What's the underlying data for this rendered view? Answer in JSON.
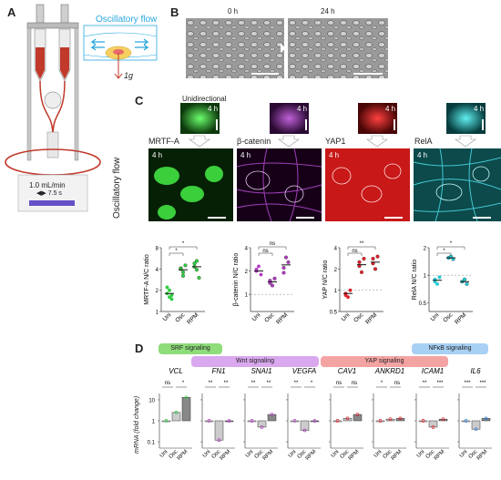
{
  "panels": {
    "A": "A",
    "B": "B",
    "C": "C",
    "D": "D"
  },
  "panelA": {
    "flow_title": "Oscillatory flow",
    "gravity": "1g",
    "flow_rate": "1.0 mL/min",
    "period": "7.5 s",
    "colors": {
      "flow": "#29a8e0",
      "cell": "#f5d060",
      "fluid": "#c0392b"
    }
  },
  "panelB": {
    "time_labels": [
      "0 h",
      "24 h"
    ]
  },
  "panelC": {
    "unidirectional_label": "Unidirectional",
    "oscillatory_label": "Oscillatory flow",
    "time_label": "4 h",
    "markers": [
      {
        "name": "MRTF-A",
        "color": "#2ecc40"
      },
      {
        "name": "β-catenin",
        "color": "#b03ac0"
      },
      {
        "name": "YAP1",
        "color": "#e0202a"
      },
      {
        "name": "RelA",
        "color": "#20c8d0"
      }
    ],
    "chart_ylabels": [
      "MRTF-A N/C ratio",
      "β-catenin N/C ratio",
      "YAP N/C ratio",
      "RelA N/C ratio"
    ],
    "groups": [
      "Uni",
      "Osc",
      "RPM"
    ],
    "sig_marks": [
      "*",
      "*",
      "ns",
      "ns",
      "**",
      "ns",
      "*",
      "*"
    ]
  },
  "panelD": {
    "signaling": [
      {
        "label": "SRF signaling",
        "color": "#8fdc7a"
      },
      {
        "label": "Wnt signaling",
        "color": "#d9a8ee"
      },
      {
        "label": "YAP signaling",
        "color": "#f4a3a3"
      },
      {
        "label": "NFκB signaling",
        "color": "#a8d0f4"
      }
    ],
    "genes": [
      "VCL",
      "FN1",
      "SNAI1",
      "VEGFA",
      "CAV1",
      "ANKRD1",
      "ICAM1",
      "IL6"
    ],
    "ylabel": "mRNA (fold change)",
    "yticks": [
      "10",
      "1",
      "0.1"
    ],
    "groups": [
      "Uni",
      "Osc",
      "RPM"
    ],
    "sig": [
      [
        "ns",
        "*"
      ],
      [
        "**",
        "**"
      ],
      [
        "**",
        "**"
      ],
      [
        "**",
        "*"
      ],
      [
        "ns",
        "ns"
      ],
      [
        "*",
        "ns"
      ],
      [
        "**",
        "***"
      ],
      [
        "***",
        "***"
      ]
    ]
  },
  "chart_data": [
    {
      "type": "scatter",
      "ylabel": "MRTF-A N/C ratio",
      "categories": [
        "Uni",
        "Osc",
        "RPM"
      ],
      "yticks": [
        1,
        2,
        4,
        8
      ],
      "ylim": [
        1,
        8
      ],
      "log_y": true,
      "series": [
        {
          "values": [
            [
              1.8,
              1.6,
              1.5,
              2.2,
              2.0,
              1.7
            ],
            [
              4.1,
              3.2,
              4.5,
              4.0,
              3.6
            ],
            [
              4.3,
              5.2,
              3.0,
              4.8,
              3.9
            ]
          ]
        }
      ],
      "means": [
        1.8,
        3.9,
        4.3
      ]
    },
    {
      "type": "scatter",
      "ylabel": "β-catenin N/C ratio",
      "categories": [
        "Uni",
        "Osc",
        "RPM"
      ],
      "yticks": [
        1,
        2,
        4
      ],
      "ylim": [
        0.6,
        4
      ],
      "log_y": true,
      "series": [
        {
          "values": [
            [
              2.0,
              2.3,
              1.8,
              2.1
            ],
            [
              1.5,
              1.3,
              1.6,
              1.4
            ],
            [
              2.2,
              3.0,
              2.6,
              1.9
            ]
          ]
        }
      ],
      "means": [
        2.0,
        1.45,
        2.4
      ]
    },
    {
      "type": "scatter",
      "ylabel": "YAP N/C ratio",
      "categories": [
        "Uni",
        "Osc",
        "RPM"
      ],
      "yticks": [
        0.5,
        1,
        2,
        4
      ],
      "ylim": [
        0.5,
        4
      ],
      "log_y": true,
      "series": [
        {
          "values": [
            [
              0.9,
              0.8,
              1.0,
              0.85
            ],
            [
              2.2,
              1.8,
              2.8,
              2.5
            ],
            [
              2.8,
              2.0,
              3.0,
              2.4
            ]
          ]
        }
      ],
      "means": [
        0.9,
        2.3,
        2.5
      ]
    },
    {
      "type": "scatter",
      "ylabel": "RelA N/C ratio",
      "categories": [
        "Uni",
        "Osc",
        "RPM"
      ],
      "yticks": [
        0.5,
        1,
        2
      ],
      "ylim": [
        0.4,
        2
      ],
      "log_y": true,
      "series": [
        {
          "values": [
            [
              0.9,
              0.8,
              0.95,
              0.85
            ],
            [
              1.55,
              1.6,
              1.5
            ],
            [
              0.85,
              0.9,
              0.8
            ]
          ]
        }
      ],
      "means": [
        0.88,
        1.55,
        0.85
      ]
    },
    {
      "type": "bar",
      "ylabel": "mRNA (fold change)",
      "log_y": true,
      "ylim": [
        0.05,
        20
      ],
      "categories": [
        "Uni",
        "Osc",
        "RPM"
      ],
      "series": [
        {
          "name": "VCL",
          "values": [
            1,
            2.5,
            13
          ]
        },
        {
          "name": "FN1",
          "values": [
            1,
            0.12,
            1
          ]
        },
        {
          "name": "SNAI1",
          "values": [
            1,
            0.5,
            2
          ]
        },
        {
          "name": "VEGFA",
          "values": [
            1,
            0.35,
            1
          ]
        },
        {
          "name": "CAV1",
          "values": [
            1,
            1.3,
            2
          ]
        },
        {
          "name": "ANKRD1",
          "values": [
            1,
            1.2,
            1.3
          ]
        },
        {
          "name": "ICAM1",
          "values": [
            1,
            0.5,
            1.2
          ]
        },
        {
          "name": "IL6",
          "values": [
            1,
            0.4,
            1.3
          ]
        }
      ]
    }
  ]
}
